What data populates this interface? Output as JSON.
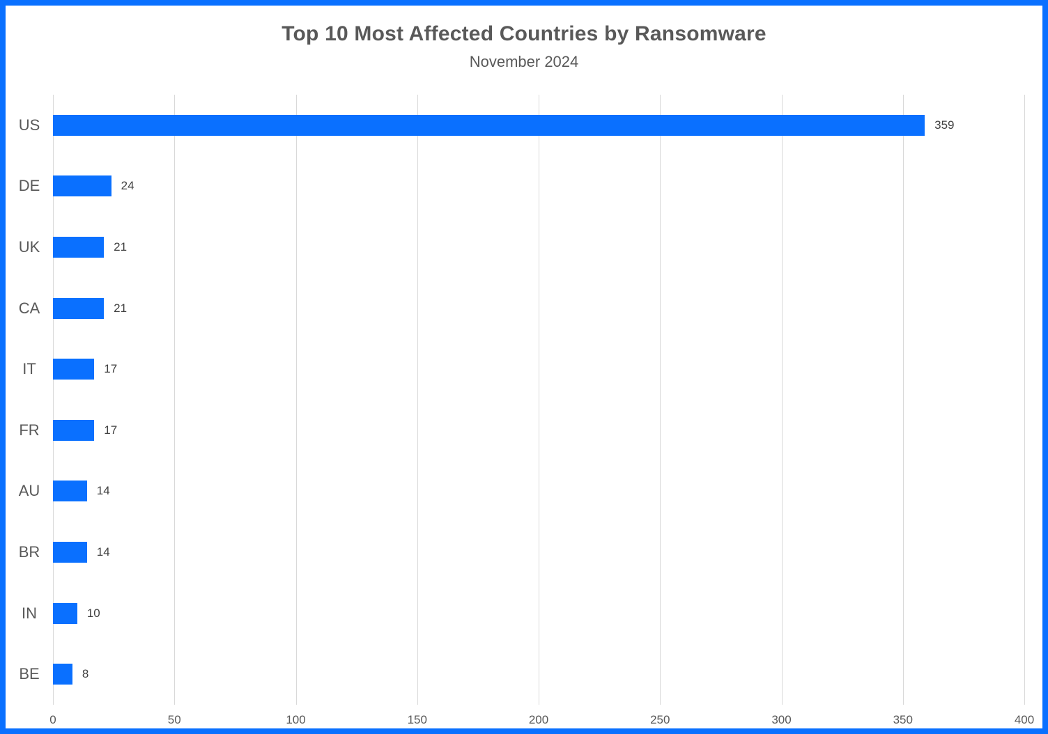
{
  "frame": {
    "border_color": "#0a70ff",
    "background_color": "#ffffff"
  },
  "chart_data": {
    "type": "bar",
    "orientation": "horizontal",
    "title": "Top 10 Most Affected Countries by Ransomware",
    "subtitle": "November 2024",
    "categories": [
      "US",
      "DE",
      "UK",
      "CA",
      "IT",
      "FR",
      "AU",
      "BR",
      "IN",
      "BE"
    ],
    "values": [
      359,
      24,
      21,
      21,
      17,
      17,
      14,
      14,
      10,
      8
    ],
    "value_labels": [
      "359",
      "24",
      "21",
      "21",
      "17",
      "17",
      "14",
      "14",
      "10",
      "8"
    ],
    "xlabel": "",
    "ylabel": "",
    "xlim": [
      0,
      400
    ],
    "x_ticks": [
      0,
      50,
      100,
      150,
      200,
      250,
      300,
      350,
      400
    ],
    "grid": "vertical-gridlines-on",
    "legend": "none",
    "bar_color": "#0a70ff",
    "gridline_color": "#d9d9d9",
    "title_color": "#595959",
    "axis_label_color": "#595959",
    "value_label_color": "#404040"
  }
}
